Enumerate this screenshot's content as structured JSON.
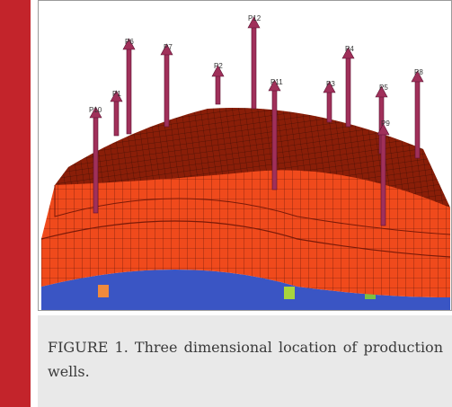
{
  "figure": {
    "wells": [
      "P10",
      "P1",
      "P6",
      "P7",
      "P2",
      "P12",
      "P11",
      "P3",
      "P4",
      "P5",
      "P9",
      "P8"
    ]
  },
  "caption": "FIGURE 1. Three dimensional location of production wells."
}
